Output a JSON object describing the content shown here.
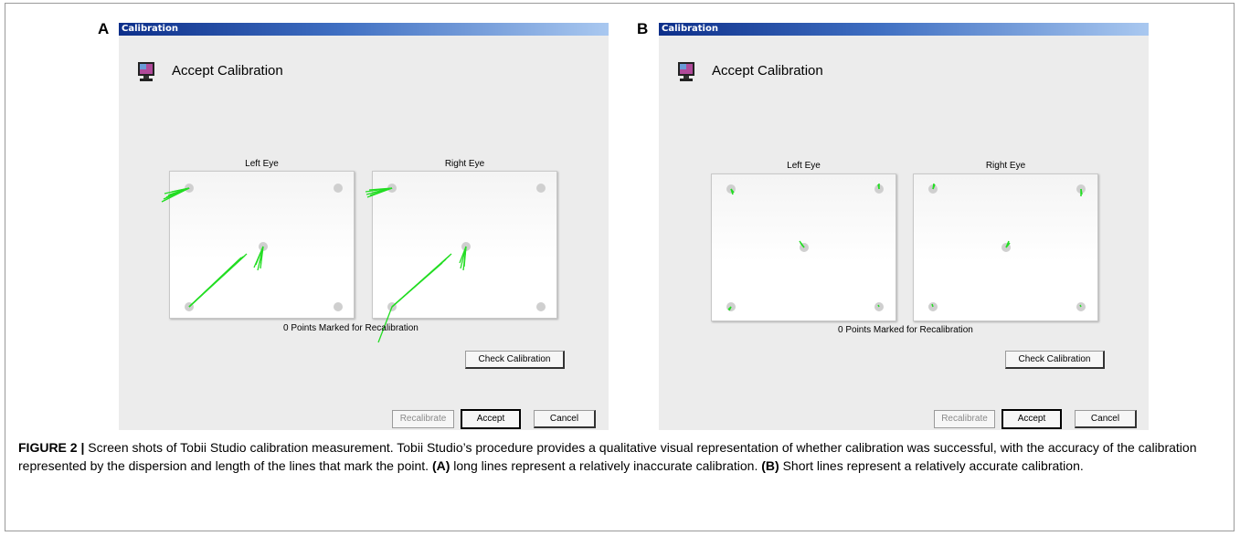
{
  "panels": [
    {
      "letter": "A",
      "window_title": "Calibration",
      "heading": "Accept Calibration",
      "left_eye_label": "Left Eye",
      "right_eye_label": "Right Eye",
      "marked_text": "0 Points Marked for Recalibration",
      "check_button": "Check Calibration",
      "recalibrate_button": "Recalibrate",
      "accept_button": "Accept",
      "cancel_button": "Cancel",
      "quality": "inaccurate"
    },
    {
      "letter": "B",
      "window_title": "Calibration",
      "heading": "Accept Calibration",
      "left_eye_label": "Left Eye",
      "right_eye_label": "Right Eye",
      "marked_text": "0 Points Marked for Recalibration",
      "check_button": "Check Calibration",
      "recalibrate_button": "Recalibrate",
      "accept_button": "Accept",
      "cancel_button": "Cancel",
      "quality": "accurate"
    }
  ],
  "caption": {
    "label": "FIGURE 2 |",
    "text": " Screen shots of Tobii Studio calibration measurement. Tobii Studio’s procedure provides a qualitative visual representation of whether calibration was successful, with the accuracy of the calibration represented by the dispersion and length of the lines that mark the point. ",
    "a_label": "(A)",
    "a_text": " long lines represent a relatively inaccurate calibration. ",
    "b_label": "(B)",
    "b_text": " Short lines represent a relatively accurate calibration."
  },
  "colors": {
    "gaze_line": "#22dd22",
    "point_fill": "#cfcfcf",
    "titlebar_start": "#0d2f8a",
    "titlebar_end": "#a9c8f0",
    "window_bg": "#ececec"
  },
  "icons": [
    "monitor-icon"
  ]
}
